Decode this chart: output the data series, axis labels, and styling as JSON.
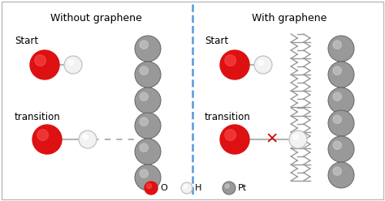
{
  "title_left": "Without graphene",
  "title_right": "With graphene",
  "label_start_left": "Start",
  "label_transition_left": "transition",
  "label_start_right": "Start",
  "label_transition_right": "transition",
  "legend_O": "O",
  "legend_H": "H",
  "legend_Pt": "Pt",
  "bg_color": "#ffffff",
  "border_color": "#bbbbbb",
  "divider_color": "#5599dd",
  "O_color": "#dd1111",
  "H_color": "#f2f2f2",
  "Pt_color": "#999999",
  "Pt_edge": "#666666",
  "H_edge": "#bbbbbb",
  "X_color": "#cc1111",
  "graphene_color": "#999999",
  "bond_color": "#aaaaaa",
  "dashed_color": "#aaaaaa"
}
